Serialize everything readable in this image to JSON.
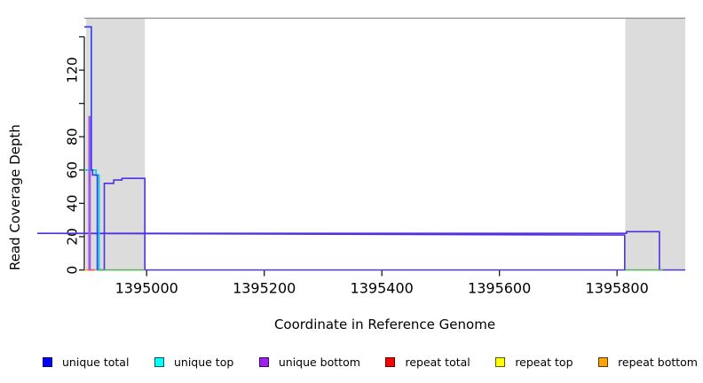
{
  "figure": {
    "xlabel": "Coordinate in Reference Genome",
    "ylabel": "Read Coverage Depth"
  },
  "legend": {
    "items": [
      {
        "label": "unique total",
        "color": "#0000FF"
      },
      {
        "label": "unique top",
        "color": "#00FFFF"
      },
      {
        "label": "unique bottom",
        "color": "#A020F0"
      },
      {
        "label": "repeat total",
        "color": "#FF0000"
      },
      {
        "label": "repeat top",
        "color": "#FFFF00"
      },
      {
        "label": "repeat bottom",
        "color": "#FFA500"
      }
    ]
  },
  "chart_data": {
    "type": "line",
    "title": "",
    "xlabel": "Coordinate in Reference Genome",
    "ylabel": "Read Coverage Depth",
    "xlim": [
      1394894,
      1395916
    ],
    "ylim": [
      0,
      151.2
    ],
    "grid": false,
    "legend_position": "bottom",
    "axis_color": "#1a1a1a",
    "top_border_color": "#8E8E8E",
    "xticks": [
      {
        "v": 1395000,
        "label": "1395000"
      },
      {
        "v": 1395200,
        "label": "1395200"
      },
      {
        "v": 1395400,
        "label": "1395400"
      },
      {
        "v": 1395600,
        "label": "1395600"
      },
      {
        "v": 1395800,
        "label": "1395800"
      }
    ],
    "yticks": [
      {
        "v": 0,
        "label": "0"
      },
      {
        "v": 20,
        "label": "20"
      },
      {
        "v": 40,
        "label": "40"
      },
      {
        "v": 60,
        "label": "60"
      },
      {
        "v": 80,
        "label": "80"
      },
      {
        "v": 100,
        "label": ""
      },
      {
        "v": 120,
        "label": "120"
      },
      {
        "v": 140,
        "label": ""
      }
    ],
    "bands": [
      {
        "x0": 1394897,
        "x1": 1394997,
        "color": "#DCDCDC"
      },
      {
        "x0": 1395814,
        "x1": 1395916,
        "color": "#DCDCDC"
      }
    ],
    "series": [
      {
        "name": "unique-combined-coverage",
        "color": "#5230DE",
        "points": [
          [
            1394916,
            0
          ],
          [
            1394928,
            0
          ],
          [
            1394928,
            52
          ],
          [
            1394944,
            52
          ],
          [
            1394944,
            54
          ],
          [
            1394958,
            54
          ],
          [
            1394958,
            55
          ],
          [
            1394997,
            55
          ],
          [
            1394997,
            0
          ],
          [
            1395813,
            0
          ],
          [
            1395813,
            21
          ],
          [
            1395814,
            21
          ],
          [
            1394814,
            22
          ],
          [
            1395814,
            22
          ],
          [
            1395816,
            22
          ],
          [
            1395816,
            23
          ],
          [
            1395872,
            23
          ],
          [
            1395872,
            0
          ],
          [
            1395916,
            0
          ]
        ]
      },
      {
        "name": "zero-line-left-band",
        "color": "#58B158",
        "points": [
          [
            1394914,
            0
          ],
          [
            1394997,
            0
          ]
        ]
      },
      {
        "name": "zero-line-right-band",
        "color": "#58B158",
        "points": [
          [
            1395814,
            0
          ],
          [
            1395878,
            0
          ]
        ]
      },
      {
        "name": "repeat-bottom-zero-segment",
        "color": "#FFA500",
        "points": [
          [
            1394894,
            0
          ],
          [
            1394900,
            0
          ]
        ]
      },
      {
        "name": "repeat-total-zero-segment",
        "color": "#FF4D4D",
        "points": [
          [
            1394900,
            0
          ],
          [
            1394913,
            0
          ]
        ]
      },
      {
        "name": "unique-top-coverage",
        "color": "#00CEE8",
        "points": [
          [
            1394894,
            60
          ],
          [
            1394914,
            60
          ],
          [
            1394914,
            57
          ],
          [
            1394919,
            57
          ],
          [
            1394919,
            0
          ]
        ]
      },
      {
        "name": "unique-bottom-spike",
        "color": "#A758E8",
        "points": [
          [
            1394902,
            0
          ],
          [
            1394902,
            92
          ],
          [
            1394904,
            92
          ],
          [
            1394904,
            0
          ]
        ]
      },
      {
        "name": "unique-total-coverage",
        "color": "#2B3CF5",
        "points": [
          [
            1394894,
            146
          ],
          [
            1394906,
            146
          ],
          [
            1394906,
            60
          ],
          [
            1394908,
            60
          ],
          [
            1394908,
            57
          ],
          [
            1394916,
            57
          ],
          [
            1394916,
            0
          ]
        ]
      }
    ]
  }
}
